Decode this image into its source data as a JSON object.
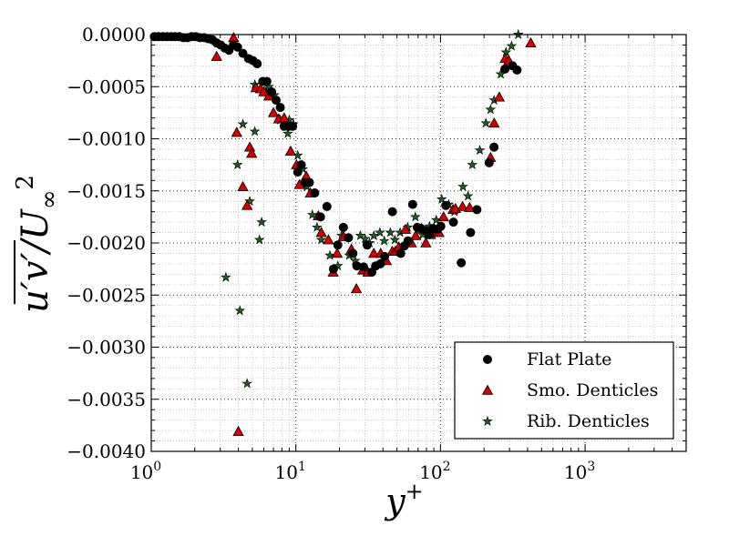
{
  "chart_data": {
    "type": "scatter",
    "x_scale": "log",
    "xlim": [
      1,
      5000
    ],
    "ylim": [
      -0.004,
      0.0
    ],
    "grid": true,
    "xlabel": "y+",
    "ylabel": "u'v'/U∞²",
    "xticks": [
      {
        "value": 1,
        "base": "10",
        "exp": "0"
      },
      {
        "value": 10,
        "base": "10",
        "exp": "1"
      },
      {
        "value": 100,
        "base": "10",
        "exp": "2"
      },
      {
        "value": 1000,
        "base": "10",
        "exp": "3"
      }
    ],
    "yticks": [
      {
        "value": 0.0,
        "label": "0.0000"
      },
      {
        "value": -0.0005,
        "label": "−0.0005"
      },
      {
        "value": -0.001,
        "label": "−0.0010"
      },
      {
        "value": -0.0015,
        "label": "−0.0015"
      },
      {
        "value": -0.002,
        "label": "−0.0020"
      },
      {
        "value": -0.0025,
        "label": "−0.0025"
      },
      {
        "value": -0.003,
        "label": "−0.0030"
      },
      {
        "value": -0.0035,
        "label": "−0.0035"
      },
      {
        "value": -0.004,
        "label": "−0.0040"
      }
    ],
    "legend_position": "bottom-right",
    "series": [
      {
        "name": "Flat Plate",
        "marker": "circle",
        "color": "#000000",
        "points": [
          [
            1.05,
            -2e-05
          ],
          [
            1.12,
            -2e-05
          ],
          [
            1.2,
            -2e-05
          ],
          [
            1.28,
            -2e-05
          ],
          [
            1.37,
            -2e-05
          ],
          [
            1.46,
            -2e-05
          ],
          [
            1.56,
            -2e-05
          ],
          [
            1.67,
            -3e-05
          ],
          [
            1.78,
            -3e-05
          ],
          [
            1.9,
            -2e-05
          ],
          [
            2.03,
            -2e-05
          ],
          [
            2.17,
            -3e-05
          ],
          [
            2.32,
            -3e-05
          ],
          [
            2.48,
            -4e-05
          ],
          [
            2.65,
            -5e-05
          ],
          [
            2.83,
            -8e-05
          ],
          [
            3.02,
            -0.0001
          ],
          [
            3.23,
            -0.00013
          ],
          [
            3.45,
            -0.00015
          ],
          [
            3.7,
            -0.0001
          ],
          [
            3.95,
            -0.00012
          ],
          [
            4.3,
            -0.00018
          ],
          [
            4.7,
            -0.00023
          ],
          [
            5.05,
            -0.00025
          ],
          [
            5.4,
            -0.00028
          ],
          [
            5.9,
            -0.00045
          ],
          [
            6.3,
            -0.00045
          ],
          [
            6.8,
            -0.00055
          ],
          [
            7.3,
            -0.00063
          ],
          [
            7.8,
            -0.0007
          ],
          [
            8.3,
            -0.00088
          ],
          [
            8.9,
            -0.00088
          ],
          [
            9.5,
            -0.00088
          ],
          [
            10.3,
            -0.00132
          ],
          [
            10.9,
            -0.00125
          ],
          [
            11.6,
            -0.00142
          ],
          [
            12.4,
            -0.00142
          ],
          [
            13.5,
            -0.00152
          ],
          [
            14.8,
            -0.00175
          ],
          [
            16.4,
            -0.00165
          ],
          [
            18.2,
            -0.00225
          ],
          [
            19.5,
            -0.00202
          ],
          [
            21.3,
            -0.00185
          ],
          [
            23.1,
            -0.00195
          ],
          [
            24.8,
            -0.0021
          ],
          [
            26.4,
            -0.00222
          ],
          [
            29.4,
            -0.00223
          ],
          [
            31.1,
            -0.00202
          ],
          [
            33.5,
            -0.00228
          ],
          [
            35.6,
            -0.00222
          ],
          [
            38.4,
            -0.0022
          ],
          [
            41.1,
            -0.00213
          ],
          [
            46.5,
            -0.0017
          ],
          [
            53.1,
            -0.0021
          ],
          [
            56.1,
            -0.00203
          ],
          [
            59.6,
            -0.00198
          ],
          [
            64.2,
            -0.00163
          ],
          [
            69.1,
            -0.00185
          ],
          [
            73.1,
            -0.00186
          ],
          [
            78.4,
            -0.00188
          ],
          [
            83.7,
            -0.00192
          ],
          [
            88.7,
            -0.00186
          ],
          [
            95.2,
            -0.00187
          ],
          [
            100.5,
            -0.00184
          ],
          [
            108.8,
            -0.00164
          ],
          [
            122.8,
            -0.0018
          ],
          [
            139.2,
            -0.00219
          ],
          [
            161.4,
            -0.0019
          ],
          [
            178.6,
            -0.00168
          ],
          [
            217.2,
            -0.00123
          ],
          [
            234.5,
            -0.00108
          ],
          [
            279.4,
            -0.00033
          ],
          [
            315.2,
            -0.0003
          ],
          [
            338.4,
            -0.00034
          ]
        ]
      },
      {
        "name": "Smo. Denticles",
        "marker": "triangle",
        "color": "#d40000",
        "points": [
          [
            2.83,
            -0.00021
          ],
          [
            3.71,
            -3e-05
          ],
          [
            3.9,
            -0.00094
          ],
          [
            4.0,
            -0.00381
          ],
          [
            4.3,
            -0.00146
          ],
          [
            4.6,
            -0.00164
          ],
          [
            4.8,
            -0.00108
          ],
          [
            4.95,
            -0.00114
          ],
          [
            5.3,
            -0.00051
          ],
          [
            5.7,
            -0.00052
          ],
          [
            6.0,
            -0.00055
          ],
          [
            6.5,
            -0.00059
          ],
          [
            7.0,
            -0.00075
          ],
          [
            7.6,
            -0.00081
          ],
          [
            8.3,
            -0.0008
          ],
          [
            9.2,
            -0.00112
          ],
          [
            10.1,
            -0.00125
          ],
          [
            10.6,
            -0.00144
          ],
          [
            11.8,
            -0.00136
          ],
          [
            12.6,
            -0.00152
          ],
          [
            14.3,
            -0.00174
          ],
          [
            15.0,
            -0.0019
          ],
          [
            16.8,
            -0.00197
          ],
          [
            18.1,
            -0.00228
          ],
          [
            19.3,
            -0.0021
          ],
          [
            21.4,
            -0.00194
          ],
          [
            24.2,
            -0.00206
          ],
          [
            26.2,
            -0.00244
          ],
          [
            29.0,
            -0.00226
          ],
          [
            31.5,
            -0.00228
          ],
          [
            34.6,
            -0.0021
          ],
          [
            38.6,
            -0.0021
          ],
          [
            42.2,
            -0.00217
          ],
          [
            46.4,
            -0.00208
          ],
          [
            48.7,
            -0.00208
          ],
          [
            51.5,
            -0.00204
          ],
          [
            57.2,
            -0.00187
          ],
          [
            62.9,
            -0.002
          ],
          [
            67.5,
            -0.00193
          ],
          [
            73.9,
            -0.00186
          ],
          [
            79.2,
            -0.002
          ],
          [
            85.3,
            -0.00192
          ],
          [
            92.0,
            -0.00188
          ],
          [
            97.6,
            -0.0019
          ],
          [
            105.0,
            -0.00175
          ],
          [
            122.0,
            -0.00168
          ],
          [
            127.0,
            -0.00167
          ],
          [
            142.0,
            -0.00165
          ],
          [
            159.0,
            -0.00166
          ],
          [
            222.0,
            -0.00118
          ],
          [
            235.0,
            -0.00085
          ],
          [
            255.0,
            -0.0006
          ],
          [
            280.0,
            -0.00023
          ],
          [
            297.0,
            -0.00025
          ],
          [
            421.0,
            -8e-05
          ]
        ]
      },
      {
        "name": "Rib. Denticles",
        "marker": "star",
        "color": "#1f5c1f",
        "points": [
          [
            3.28,
            -0.00233
          ],
          [
            3.95,
            -0.00125
          ],
          [
            4.1,
            -0.00265
          ],
          [
            4.3,
            -0.00086
          ],
          [
            4.6,
            -0.00335
          ],
          [
            4.8,
            -0.0016
          ],
          [
            5.2,
            -0.00048
          ],
          [
            5.2,
            -0.00093
          ],
          [
            5.6,
            -0.00197
          ],
          [
            5.8,
            -0.0018
          ],
          [
            6.2,
            -0.00055
          ],
          [
            6.5,
            -0.0005
          ],
          [
            7.1,
            -0.00058
          ],
          [
            7.8,
            -0.00082
          ],
          [
            8.3,
            -0.00082
          ],
          [
            8.8,
            -0.00095
          ],
          [
            9.0,
            -0.00082
          ],
          [
            9.6,
            -0.00086
          ],
          [
            10.3,
            -0.00116
          ],
          [
            11.2,
            -0.00129
          ],
          [
            11.9,
            -0.00146
          ],
          [
            13.0,
            -0.00173
          ],
          [
            14.0,
            -0.00185
          ],
          [
            15.0,
            -0.00197
          ],
          [
            17.2,
            -0.00212
          ],
          [
            19.5,
            -0.00222
          ],
          [
            20.7,
            -0.00193
          ],
          [
            23.4,
            -0.00212
          ],
          [
            25.7,
            -0.00217
          ],
          [
            27.9,
            -0.00193
          ],
          [
            30.1,
            -0.00196
          ],
          [
            32.3,
            -0.002
          ],
          [
            34.6,
            -0.00193
          ],
          [
            38.1,
            -0.0019
          ],
          [
            40.9,
            -0.00198
          ],
          [
            45.0,
            -0.0019
          ],
          [
            48.4,
            -0.00197
          ],
          [
            52.6,
            -0.0019
          ],
          [
            59.3,
            -0.00185
          ],
          [
            67.0,
            -0.00175
          ],
          [
            75.5,
            -0.00192
          ],
          [
            84.0,
            -0.00184
          ],
          [
            93.5,
            -0.00178
          ],
          [
            102.0,
            -0.00158
          ],
          [
            114.0,
            -0.00163
          ],
          [
            125.0,
            -0.0017
          ],
          [
            143.0,
            -0.00146
          ],
          [
            155.0,
            -0.00155
          ],
          [
            166.0,
            -0.00125
          ],
          [
            187.0,
            -0.00111
          ],
          [
            206.0,
            -0.00085
          ],
          [
            222.0,
            -0.00072
          ],
          [
            235.0,
            -0.00063
          ],
          [
            261.0,
            -0.00038
          ],
          [
            284.0,
            -0.00017
          ],
          [
            310.0,
            -0.00011
          ],
          [
            345.0,
            0.0
          ]
        ]
      }
    ]
  }
}
